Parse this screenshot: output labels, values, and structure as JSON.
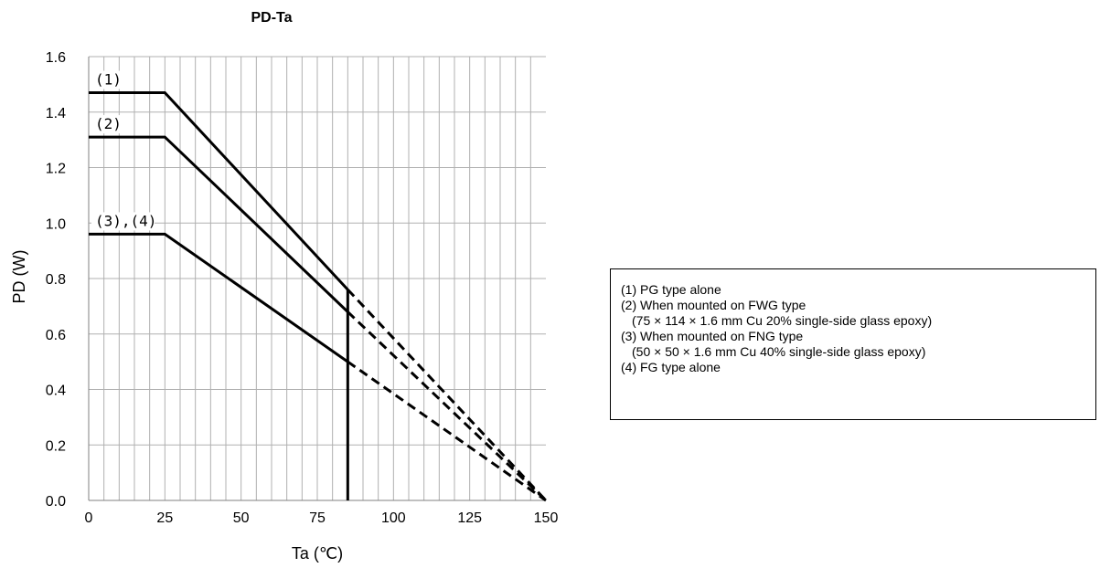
{
  "chart_data": {
    "type": "line",
    "title": "PD-Ta",
    "xlabel": "Ta (℃)",
    "ylabel": "PD (W)",
    "xlim": [
      0,
      150
    ],
    "ylim": [
      0,
      1.6
    ],
    "xticks": [
      "0",
      "25",
      "50",
      "75",
      "100",
      "125",
      "150"
    ],
    "yticks": [
      "0.0",
      "0.2",
      "0.4",
      "0.6",
      "0.8",
      "1.0",
      "1.2",
      "1.4",
      "1.6"
    ],
    "grid": true,
    "series": [
      {
        "name": "(1)",
        "solid": [
          [
            0,
            1.47
          ],
          [
            25,
            1.47
          ],
          [
            85,
            0.76
          ]
        ],
        "dashed": [
          [
            85,
            0.76
          ],
          [
            150,
            0
          ]
        ]
      },
      {
        "name": "(2)",
        "solid": [
          [
            0,
            1.31
          ],
          [
            25,
            1.31
          ],
          [
            85,
            0.68
          ]
        ],
        "dashed": [
          [
            85,
            0.68
          ],
          [
            150,
            0
          ]
        ]
      },
      {
        "name": "(3),(4)",
        "solid": [
          [
            0,
            0.96
          ],
          [
            25,
            0.96
          ],
          [
            85,
            0.5
          ]
        ],
        "dashed": [
          [
            85,
            0.5
          ],
          [
            150,
            0
          ]
        ]
      }
    ],
    "vertical_line": {
      "x": 85,
      "y_from": 0,
      "y_to": 0.76
    }
  },
  "legend_box": {
    "lines": [
      "(1) PG type alone",
      "(2) When mounted on FWG type",
      "(75 × 114 × 1.6 mm Cu 20% single-side glass epoxy)",
      "(3) When mounted on FNG type",
      "(50 × 50 × 1.6 mm Cu 40% single-side glass epoxy)",
      "(4) FG type alone"
    ]
  }
}
